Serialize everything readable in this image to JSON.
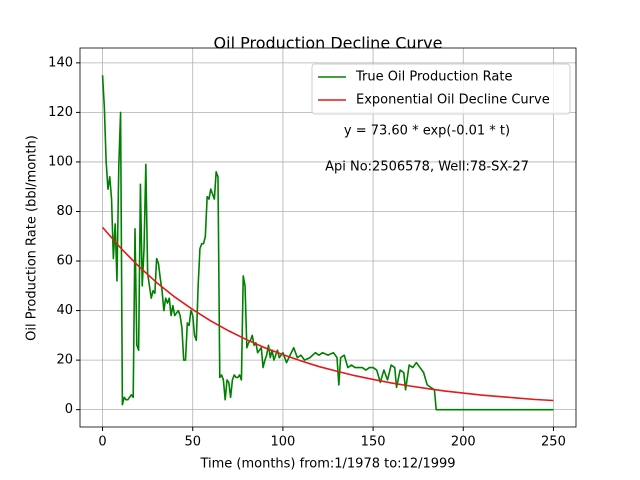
{
  "chart_data": {
    "type": "line",
    "title": "Oil Production Decline Curve",
    "xlabel": "Time (months) from:1/1978 to:12/1999",
    "ylabel": "Oil Production Rate (bbl/month)",
    "annotations": [
      "y = 73.60 * exp(-0.01 * t)",
      "Api No:2506578, Well:78-SX-27"
    ],
    "xlim": [
      -12.5,
      262.5
    ],
    "ylim": [
      -7,
      146
    ],
    "xticks": [
      0,
      50,
      100,
      150,
      200,
      250
    ],
    "yticks": [
      0,
      20,
      40,
      60,
      80,
      100,
      120,
      140
    ],
    "grid": true,
    "legend": "upper right",
    "series": [
      {
        "name": "True Oil Production Rate",
        "color": "#008000",
        "x": [
          0,
          1,
          2,
          3,
          4,
          5,
          6,
          7,
          8,
          9,
          10,
          11,
          12,
          13,
          14,
          15,
          16,
          17,
          18,
          19,
          20,
          21,
          22,
          23,
          24,
          25,
          26,
          27,
          28,
          29,
          30,
          31,
          32,
          33,
          34,
          35,
          36,
          37,
          38,
          39,
          40,
          41,
          42,
          43,
          44,
          45,
          46,
          47,
          48,
          49,
          50,
          51,
          52,
          53,
          54,
          55,
          56,
          57,
          58,
          59,
          60,
          61,
          62,
          63,
          64,
          65,
          66,
          67,
          68,
          69,
          70,
          71,
          72,
          73,
          74,
          75,
          76,
          77,
          78,
          79,
          80,
          81,
          82,
          83,
          84,
          85,
          86,
          87,
          88,
          89,
          90,
          91,
          92,
          93,
          94,
          95,
          96,
          97,
          98,
          99,
          100,
          102,
          104,
          106,
          108,
          110,
          112,
          115,
          118,
          120,
          122,
          125,
          128,
          130,
          131,
          132,
          134,
          136,
          138,
          140,
          142,
          144,
          146,
          148,
          150,
          152,
          154,
          156,
          158,
          160,
          162,
          163,
          165,
          167,
          168,
          170,
          172,
          174,
          176,
          178,
          180,
          182,
          184,
          185,
          250
        ],
        "values": [
          135,
          122,
          100,
          89,
          94,
          85,
          61,
          75,
          52,
          98,
          120,
          2,
          5,
          4,
          4,
          5,
          6,
          5,
          73,
          26,
          24,
          91,
          50,
          65,
          99,
          55,
          50,
          45,
          48,
          47,
          61,
          59,
          53,
          48,
          40,
          45,
          43,
          45,
          38,
          42,
          38,
          39,
          40,
          38,
          33,
          20,
          20,
          35,
          34,
          40,
          38,
          30,
          28,
          50,
          65,
          67,
          67,
          70,
          86,
          85,
          89,
          87,
          85,
          96,
          94,
          13,
          14,
          12,
          4,
          12,
          11,
          5,
          12,
          14,
          13,
          13,
          14,
          12,
          54,
          50,
          25,
          27,
          28,
          30,
          26,
          27,
          23,
          24,
          25,
          17,
          20,
          22,
          26,
          21,
          24,
          20,
          22,
          24,
          21,
          22,
          23,
          19,
          22,
          25,
          21,
          22,
          20,
          21,
          23,
          22,
          23,
          22,
          23,
          21,
          10,
          21,
          22,
          17,
          18,
          17,
          17,
          17,
          16,
          17,
          17,
          16,
          11,
          16,
          12,
          18,
          17,
          9,
          16,
          15,
          8,
          18,
          17,
          19,
          17,
          15,
          10,
          9,
          8,
          0,
          0
        ]
      },
      {
        "name": "Exponential Oil Decline Curve",
        "color": "#e31a1c",
        "x": [
          0,
          10,
          20,
          30,
          40,
          50,
          60,
          70,
          80,
          90,
          100,
          110,
          120,
          130,
          140,
          150,
          160,
          170,
          180,
          190,
          200,
          210,
          220,
          230,
          240,
          250
        ],
        "values": [
          73.6,
          65.3,
          57.9,
          51.3,
          45.5,
          40.4,
          35.8,
          31.8,
          28.2,
          25.0,
          22.2,
          19.7,
          17.4,
          15.5,
          13.7,
          12.2,
          10.8,
          9.6,
          8.5,
          7.5,
          6.7,
          5.9,
          5.3,
          4.7,
          4.1,
          3.7
        ]
      }
    ]
  }
}
